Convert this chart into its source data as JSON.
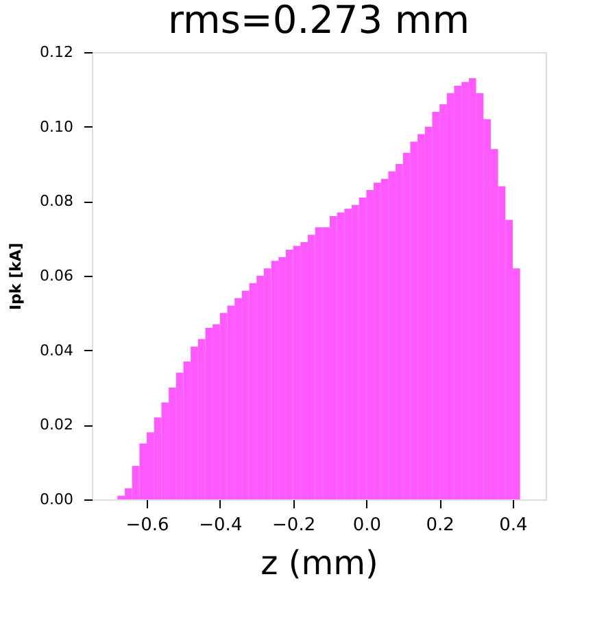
{
  "chart_data": {
    "type": "histogram",
    "title": "rms=0.273  mm",
    "xlabel": "z (mm)",
    "ylabel": "Ipk [kA]",
    "bins": [
      -0.68,
      -0.66,
      -0.64,
      -0.62,
      -0.6,
      -0.58,
      -0.56,
      -0.54,
      -0.52,
      -0.5,
      -0.48,
      -0.46,
      -0.44,
      -0.42,
      -0.4,
      -0.38,
      -0.36,
      -0.34,
      -0.32,
      -0.3,
      -0.28,
      -0.26,
      -0.24,
      -0.22,
      -0.2,
      -0.18,
      -0.16,
      -0.14,
      -0.12,
      -0.1,
      -0.08,
      -0.06,
      -0.04,
      -0.02,
      0.0,
      0.02,
      0.04,
      0.06,
      0.08,
      0.1,
      0.12,
      0.14,
      0.16,
      0.18,
      0.2,
      0.22,
      0.24,
      0.26,
      0.28,
      0.3,
      0.32,
      0.34,
      0.36,
      0.38,
      0.4,
      0.42
    ],
    "values": [
      0.001,
      0.003,
      0.009,
      0.015,
      0.018,
      0.022,
      0.026,
      0.03,
      0.034,
      0.037,
      0.041,
      0.043,
      0.046,
      0.047,
      0.05,
      0.052,
      0.054,
      0.056,
      0.058,
      0.06,
      0.062,
      0.064,
      0.065,
      0.067,
      0.068,
      0.069,
      0.071,
      0.073,
      0.073,
      0.076,
      0.077,
      0.078,
      0.079,
      0.081,
      0.083,
      0.085,
      0.086,
      0.088,
      0.09,
      0.093,
      0.096,
      0.098,
      0.1,
      0.104,
      0.106,
      0.109,
      0.111,
      0.112,
      0.113,
      0.109,
      0.102,
      0.094,
      0.084,
      0.075,
      0.062
    ],
    "color": "#ff5aff",
    "xlim": [
      -0.75,
      0.49
    ],
    "xticks": [
      -0.6,
      -0.4,
      -0.2,
      {
        "value": 0,
        "label": "0.0"
      },
      0.2,
      0.4
    ],
    "ylim": [
      0,
      0.12
    ],
    "yticks": [
      {
        "value": 0,
        "label": "0.00"
      },
      {
        "value": 0.02,
        "label": "0.02"
      },
      {
        "value": 0.04,
        "label": "0.04"
      },
      {
        "value": 0.06,
        "label": "0.06"
      },
      {
        "value": 0.08,
        "label": "0.08"
      },
      {
        "value": 0.1,
        "label": "0.10"
      },
      {
        "value": 0.12,
        "label": "0.12"
      }
    ],
    "grid": false
  }
}
